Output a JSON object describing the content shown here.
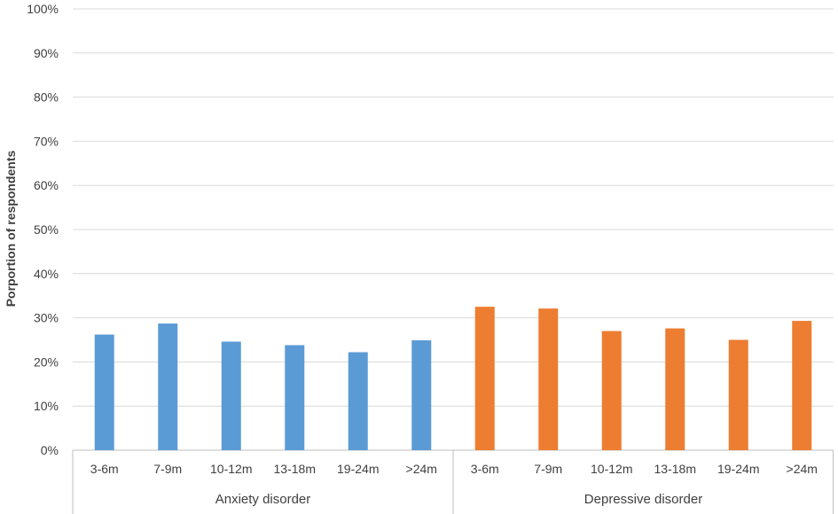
{
  "chart_data": {
    "type": "bar",
    "ylabel": "Porportion of respondents",
    "xlabel": "",
    "ylim": [
      0,
      100
    ],
    "yticks": [
      "0%",
      "10%",
      "20%",
      "30%",
      "40%",
      "50%",
      "60%",
      "70%",
      "80%",
      "90%",
      "100%"
    ],
    "groups": [
      {
        "label": "Anxiety disorder",
        "color": "#5b9bd5",
        "categories": [
          "3-6m",
          "7-9m",
          "10-12m",
          "13-18m",
          "19-24m",
          ">24m"
        ],
        "values": [
          26.2,
          28.7,
          24.6,
          23.8,
          22.2,
          24.9
        ]
      },
      {
        "label": "Depressive disorder",
        "color": "#ed7d31",
        "categories": [
          "3-6m",
          "7-9m",
          "10-12m",
          "13-18m",
          "19-24m",
          ">24m"
        ],
        "values": [
          32.5,
          32.1,
          27.0,
          27.6,
          25.0,
          29.3
        ]
      }
    ],
    "grid": true,
    "legend": "none"
  }
}
